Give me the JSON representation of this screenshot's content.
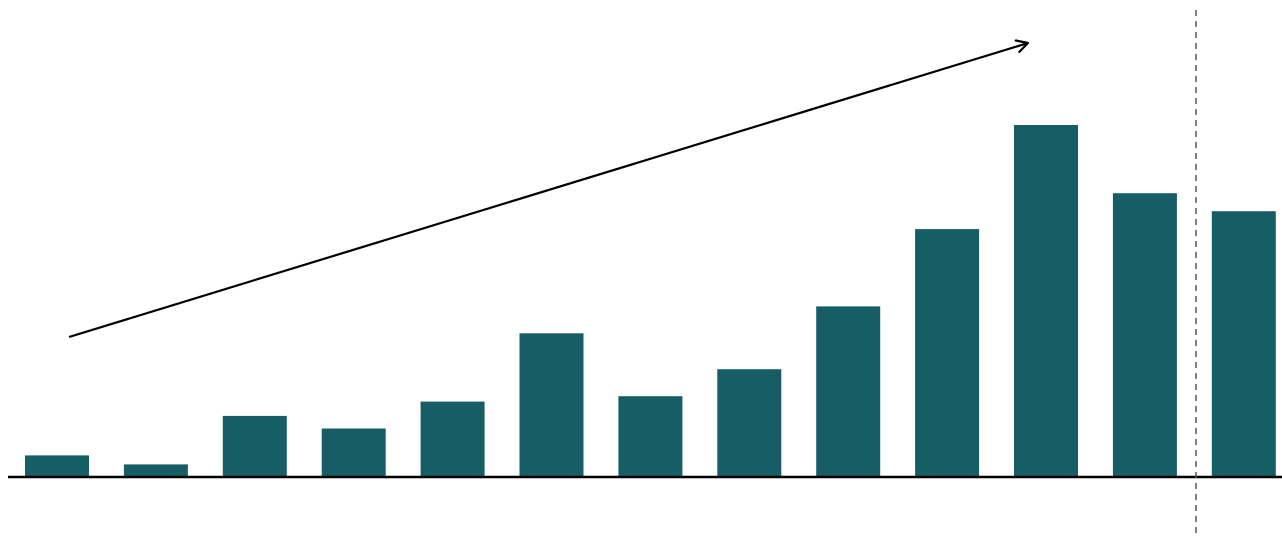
{
  "chart_data": {
    "type": "bar",
    "title": "",
    "xlabel": "",
    "ylabel": "",
    "values": [
      1.2,
      0.7,
      3.4,
      2.7,
      4.2,
      8.0,
      4.5,
      6.0,
      9.5,
      13.8,
      19.6,
      15.8,
      14.8
    ],
    "ylim": [
      0,
      26
    ],
    "grid": false,
    "legend": "none",
    "bar_color": "#165d66",
    "trend_arrow": {
      "from_bar": 0,
      "direction": "up",
      "color": "#000000"
    },
    "divider": {
      "after_bar": 11,
      "style": "dashed",
      "color": "#555555"
    }
  }
}
